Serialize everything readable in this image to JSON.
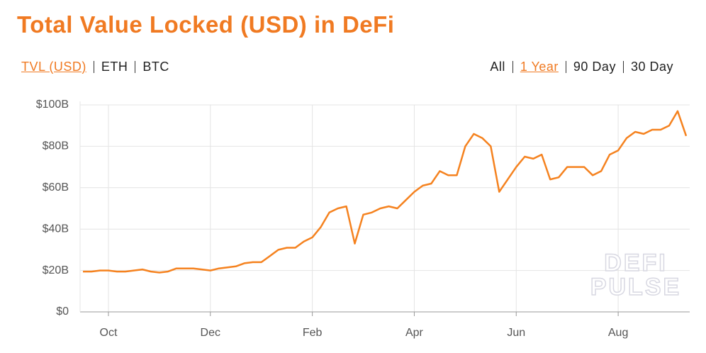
{
  "header": {
    "title": "Total Value Locked (USD) in DeFi",
    "units": [
      "TVL (USD)",
      "ETH",
      "BTC"
    ],
    "active_unit": 0,
    "ranges": [
      "All",
      "1 Year",
      "90 Day",
      "30 Day"
    ],
    "active_range": 1
  },
  "chart_data": {
    "type": "line",
    "watermark": [
      "DEFI",
      "PULSE"
    ],
    "categories": [
      null,
      null,
      null,
      "Oct",
      null,
      null,
      null,
      null,
      null,
      null,
      null,
      null,
      null,
      null,
      null,
      "Dec",
      null,
      null,
      null,
      null,
      null,
      null,
      null,
      null,
      null,
      null,
      null,
      "Feb",
      null,
      null,
      null,
      null,
      null,
      null,
      null,
      null,
      null,
      null,
      null,
      "Apr",
      null,
      null,
      null,
      null,
      null,
      null,
      null,
      null,
      null,
      null,
      null,
      "Jun",
      null,
      null,
      null,
      null,
      null,
      null,
      null,
      null,
      null,
      null,
      null,
      "Aug",
      null,
      null,
      null,
      null,
      null,
      null,
      null,
      null
    ],
    "series": [
      {
        "name": "TVL (USD)",
        "color": "#f5821f",
        "values": [
          19.5,
          19.5,
          20,
          20,
          19.5,
          19.5,
          20,
          20.5,
          19.5,
          19,
          19.5,
          21,
          21,
          21,
          20.5,
          20,
          21,
          21.5,
          22,
          23.5,
          24,
          24,
          27,
          30,
          31,
          31,
          34,
          36,
          41,
          48,
          50,
          51,
          33,
          47,
          48,
          50,
          51,
          50,
          54,
          58,
          61,
          62,
          68,
          66,
          66,
          80,
          86,
          84,
          80,
          58,
          64,
          70,
          75,
          74,
          76,
          64,
          65,
          70,
          70,
          70,
          66,
          68,
          76,
          78,
          84,
          87,
          86,
          88,
          88,
          90,
          97,
          85
        ]
      }
    ],
    "ylim": [
      0,
      100
    ],
    "yticks": [
      {
        "value": 0,
        "label": "$0"
      },
      {
        "value": 20,
        "label": "$20B"
      },
      {
        "value": 40,
        "label": "$40B"
      },
      {
        "value": 60,
        "label": "$60B"
      },
      {
        "value": 80,
        "label": "$80B"
      },
      {
        "value": 100,
        "label": "$100B"
      }
    ],
    "grid": true
  }
}
